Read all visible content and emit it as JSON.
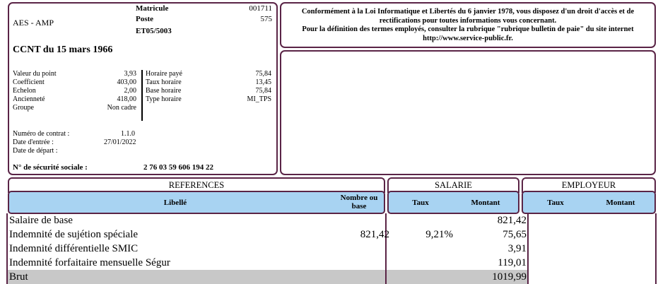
{
  "employer": {
    "name": "AES - AMP",
    "convention": "CCNT du 15 mars 1966"
  },
  "matricule": {
    "label": "Matricule",
    "value": "001711"
  },
  "poste": {
    "label": "Poste",
    "value": "575"
  },
  "etablissement": "ET05/5003",
  "employee_left": [
    {
      "label": "Valeur du point",
      "value": "3,93"
    },
    {
      "label": "Coefficient",
      "value": "403,00"
    },
    {
      "label": "Echelon",
      "value": "2,00"
    },
    {
      "label": "Ancienneté",
      "value": "418,00"
    },
    {
      "label": "Groupe",
      "value": "Non cadre"
    }
  ],
  "employee_right": [
    {
      "label": "Horaire payé",
      "value": "75,84"
    },
    {
      "label": "Taux horaire",
      "value": "13,45"
    },
    {
      "label": "Base horaire",
      "value": "75,84"
    },
    {
      "label": "Type horaire",
      "value": "MI_TPS"
    }
  ],
  "contract": [
    {
      "label": "Numéro de contrat :",
      "value": "1.1.0"
    },
    {
      "label": "Date d'entrée :",
      "value": "27/01/2022"
    },
    {
      "label": "Date de départ :",
      "value": ""
    }
  ],
  "secu": {
    "label": "N° de sécurité sociale :",
    "value": "2 76 03 59 606 194 22"
  },
  "info": {
    "line1": "Conformément à la Loi Informatique et Libertés du 6 janvier 1978, vous disposez d'un droit d'accès et de",
    "line2": "rectifications pour toutes informations vous concernant.",
    "line3": "Pour la définition des termes employés, consulter la rubrique \"rubrique bulletin de paie\" du site internet",
    "line4": "http://www.service-public.fr."
  },
  "sections": {
    "references": "REFERENCES",
    "salarie": "SALARIE",
    "employeur": "EMPLOYEUR"
  },
  "headers": {
    "libelle": "Libellé",
    "nombre1": "Nombre ou",
    "nombre2": "base",
    "taux_sal": "Taux",
    "montant_sal": "Montant",
    "taux_emp": "Taux",
    "montant_emp": "Montant"
  },
  "rows": [
    {
      "libelle": "Salaire de base",
      "base": "",
      "taux": "",
      "montant": "821,42"
    },
    {
      "libelle": "Indemnité de sujétion spéciale",
      "base": "821,42",
      "taux": "9,21%",
      "montant": "75,65"
    },
    {
      "libelle": "Indemnité différentielle SMIC",
      "base": "",
      "taux": "",
      "montant": "3,91"
    },
    {
      "libelle": "Indemnité forfaitaire mensuelle Ségur",
      "base": "",
      "taux": "",
      "montant": "119,01"
    },
    {
      "libelle": "Brut",
      "base": "",
      "taux": "",
      "montant": "1019,99"
    }
  ]
}
